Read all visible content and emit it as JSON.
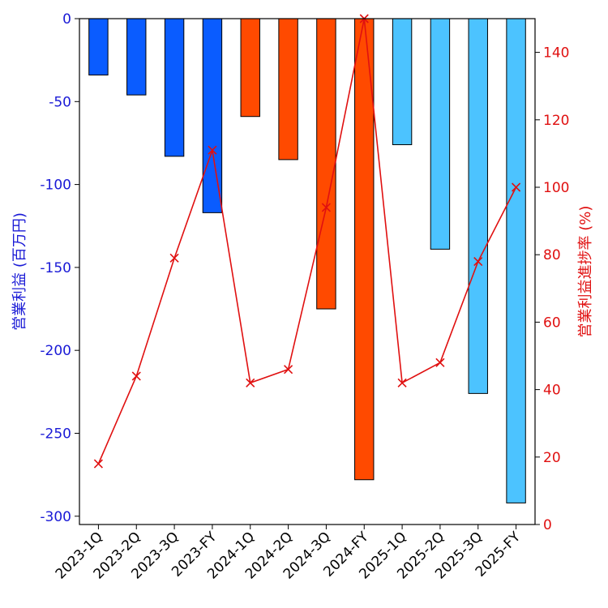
{
  "chart_data": {
    "type": "bar+line",
    "categories": [
      "2023-1Q",
      "2023-2Q",
      "2023-3Q",
      "2023-FY",
      "2024-1Q",
      "2024-2Q",
      "2024-3Q",
      "2024-FY",
      "2025-1Q",
      "2025-2Q",
      "2025-3Q",
      "2025-FY"
    ],
    "bar_series": {
      "name": "営業利益",
      "values": [
        -34,
        -46,
        -83,
        -117,
        -59,
        -85,
        -175,
        -278,
        -76,
        -139,
        -226,
        -292
      ],
      "colors": [
        "#0a5cff",
        "#0a5cff",
        "#0a5cff",
        "#0a5cff",
        "#ff4a00",
        "#ff4a00",
        "#ff4a00",
        "#ff4a00",
        "#4cc3ff",
        "#4cc3ff",
        "#4cc3ff",
        "#4cc3ff"
      ]
    },
    "line_series": {
      "name": "営業利益進捗率",
      "values": [
        18,
        44,
        79,
        111,
        42,
        46,
        94,
        150,
        42,
        48,
        78,
        100
      ],
      "color": "#e01010",
      "marker": "x"
    },
    "ylabel_left": "営業利益 (百万円)",
    "ylabel_right": "営業利益進捗率 (%)",
    "ylim_left": [
      -305,
      0
    ],
    "yticks_left": [
      0,
      -50,
      -100,
      -150,
      -200,
      -250,
      -300
    ],
    "ylim_right": [
      0,
      150
    ],
    "yticks_right": [
      0,
      20,
      40,
      60,
      80,
      100,
      120,
      140
    ],
    "grid": false
  }
}
